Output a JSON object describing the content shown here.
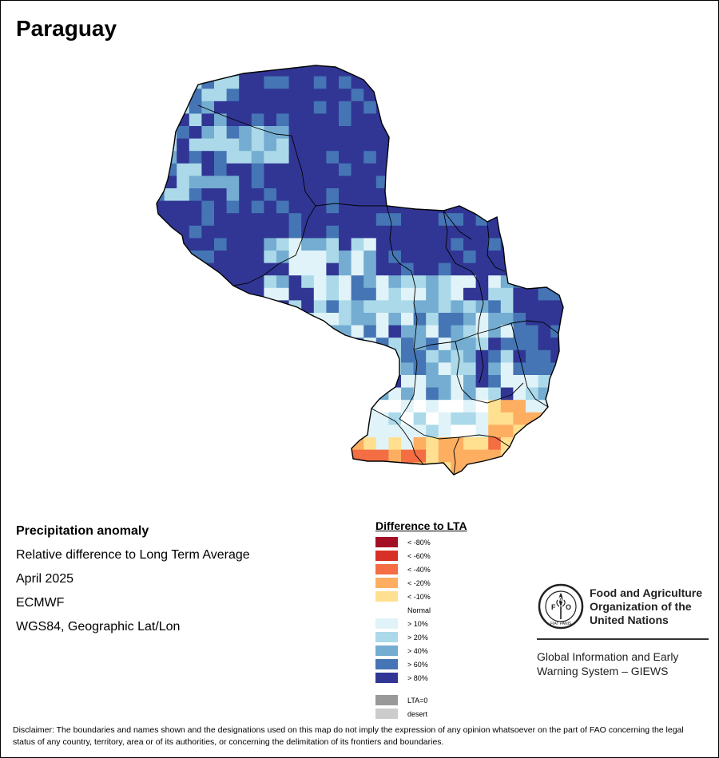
{
  "map": {
    "title": "Paraguay",
    "info_lines": [
      "Precipitation anomaly",
      "Relative difference to Long Term Average",
      "April 2025",
      "ECMWF",
      "WGS84, Geographic Lat/Lon"
    ]
  },
  "legend": {
    "title": "Difference to LTA",
    "classes": [
      {
        "label": "< -80%",
        "color": "#a50f26"
      },
      {
        "label": "< -60%",
        "color": "#d73027"
      },
      {
        "label": "< -40%",
        "color": "#f46d43"
      },
      {
        "label": "< -20%",
        "color": "#fdae61"
      },
      {
        "label": "< -10%",
        "color": "#fee090"
      },
      {
        "label": "Normal",
        "color": "#ffffff"
      },
      {
        "label": "> 10%",
        "color": "#e0f3f8"
      },
      {
        "label": "> 20%",
        "color": "#abd9e9"
      },
      {
        "label": "> 40%",
        "color": "#74add1"
      },
      {
        "label": "> 60%",
        "color": "#4575b4"
      },
      {
        "label": "> 80%",
        "color": "#313695"
      }
    ],
    "extra": [
      {
        "label": "LTA=0",
        "color": "#999999"
      },
      {
        "label": "desert",
        "color": "#cccccc"
      }
    ]
  },
  "fao": {
    "org_name": "Food and Agriculture Organization of the United Nations",
    "emblem_text": "FAO",
    "emblem_motto": "FIAT PANIS",
    "system_name": "Global Information and Early Warning System – GIEWS"
  },
  "disclaimer": "Disclaimer: The boundaries and names shown and the designations used on this map do not imply the expression of any opinion whatsoever on the part of FAO concerning the legal status of any country, territory, area or of its authorities, or concerning the delimitation of its frontiers and boundaries."
}
